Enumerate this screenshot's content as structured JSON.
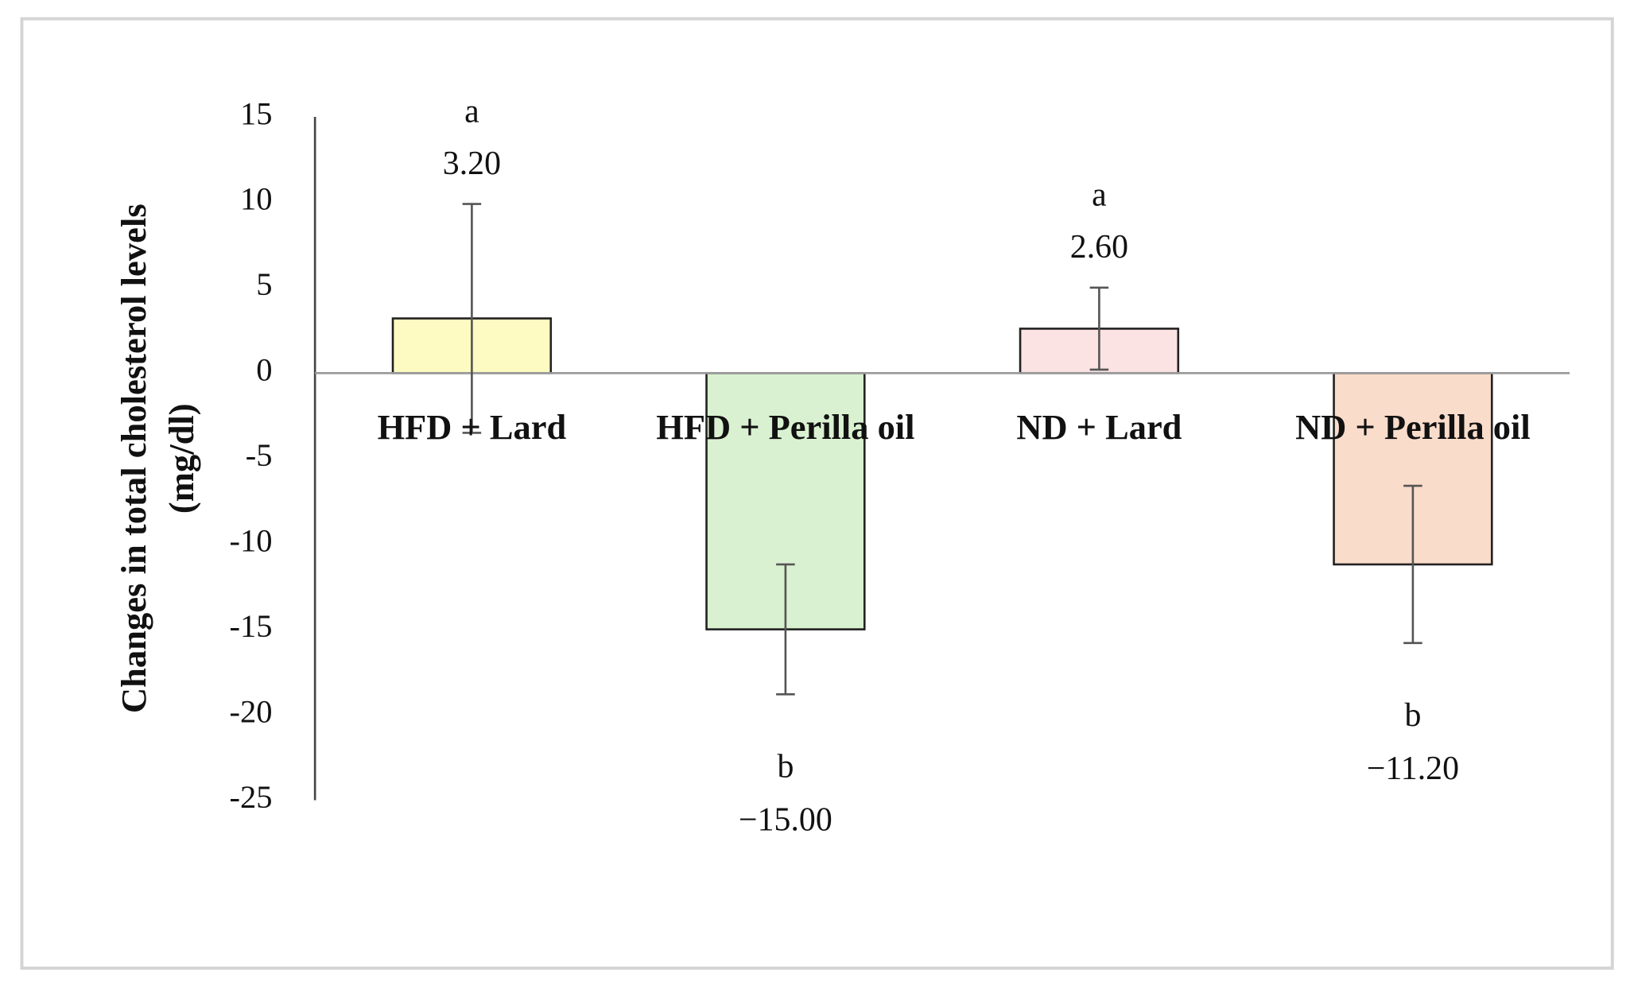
{
  "chart_data": {
    "type": "bar",
    "ylabel": [
      "Changes in total cholesterol levels",
      "(mg/dl)"
    ],
    "categories": [
      "HFD + Lard",
      "HFD + Perilla oil",
      "ND + Lard",
      "ND + Perilla oil"
    ],
    "values": [
      3.2,
      -15.0,
      2.6,
      -11.2
    ],
    "value_labels": [
      "3.20",
      "−15.00",
      "2.60",
      "−11.20"
    ],
    "errors": [
      6.7,
      3.8,
      2.4,
      4.6
    ],
    "letters": [
      "a",
      "b",
      "a",
      "b"
    ],
    "colors": [
      "#fdfbc2",
      "#d9f1d0",
      "#fbe3e3",
      "#fadccb"
    ],
    "ylim": [
      -25,
      15
    ],
    "yticks": [
      -25,
      -20,
      -15,
      -10,
      -5,
      0,
      5,
      10,
      15
    ],
    "grid": false
  }
}
